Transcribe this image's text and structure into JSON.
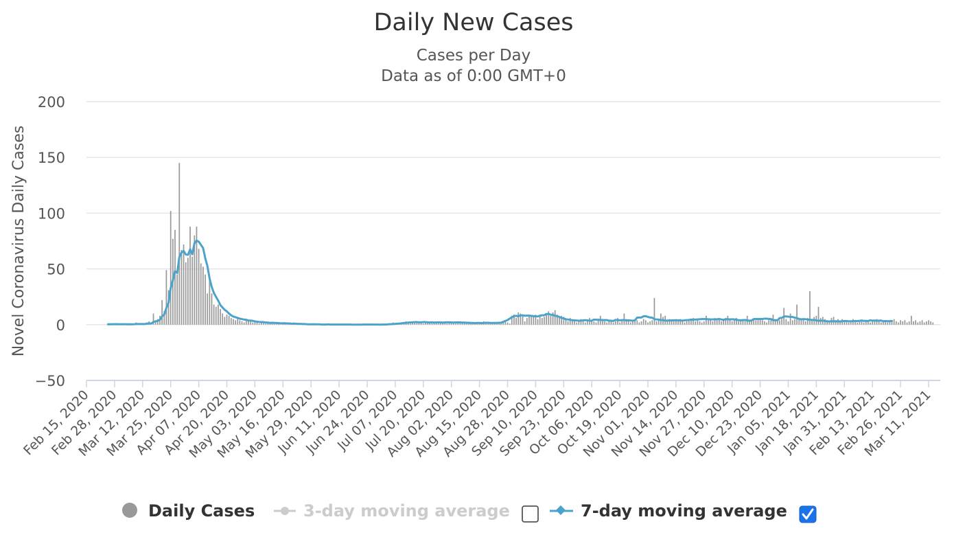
{
  "colors": {
    "bar": "#999999",
    "ma7": "#4ba3cb",
    "ma3_disabled": "#cccccc",
    "grid": "#e6e6e6",
    "checkbox_checked": "#1a73e8"
  },
  "chart_data": {
    "type": "bar",
    "title": "Daily New Cases",
    "subtitle_lines": [
      "Cases per Day",
      "Data as of 0:00 GMT+0"
    ],
    "ylabel": "Novel Coronavirus Daily Cases",
    "xlabel": "",
    "ylim": [
      -50,
      200
    ],
    "yticks": [
      -50,
      0,
      50,
      100,
      150,
      200
    ],
    "x_start_date": "Feb 15, 2020",
    "xtick_labels": [
      "Feb 15, 2020",
      "Feb 28, 2020",
      "Mar 12, 2020",
      "Mar 25, 2020",
      "Apr 07, 2020",
      "Apr 20, 2020",
      "May 03, 2020",
      "May 16, 2020",
      "May 29, 2020",
      "Jun 11, 2020",
      "Jun 24, 2020",
      "Jul 07, 2020",
      "Jul 20, 2020",
      "Aug 02, 2020",
      "Aug 15, 2020",
      "Aug 28, 2020",
      "Sep 10, 2020",
      "Sep 23, 2020",
      "Oct 06, 2020",
      "Oct 19, 2020",
      "Nov 01, 2020",
      "Nov 14, 2020",
      "Nov 27, 2020",
      "Dec 10, 2020",
      "Dec 23, 2020",
      "Jan 05, 2021",
      "Jan 18, 2021",
      "Jan 31, 2021",
      "Feb 13, 2021",
      "Feb 26, 2021",
      "Mar 11, 2021"
    ],
    "grid": true,
    "legend_placement": "bottom-center",
    "series": [
      {
        "name": "Daily Cases",
        "type": "bar",
        "start_date": "Feb 25, 2020",
        "values": [
          0,
          0,
          1,
          0,
          1,
          0,
          0,
          1,
          0,
          0,
          1,
          0,
          0,
          2,
          0,
          0,
          1,
          0,
          2,
          3,
          0,
          10,
          4,
          5,
          8,
          22,
          12,
          49,
          31,
          102,
          77,
          85,
          45,
          145,
          67,
          72,
          56,
          60,
          88,
          61,
          80,
          88,
          68,
          55,
          52,
          45,
          28,
          43,
          28,
          18,
          16,
          18,
          14,
          10,
          7,
          9,
          8,
          6,
          5,
          4,
          6,
          4,
          3,
          2,
          5,
          3,
          3,
          2,
          3,
          2,
          1,
          2,
          3,
          1,
          2,
          1,
          1,
          2,
          1,
          2,
          0,
          1,
          2,
          1,
          1,
          0,
          2,
          1,
          0,
          1,
          1,
          0,
          1,
          0,
          0,
          1,
          0,
          0,
          1,
          0,
          0,
          0,
          1,
          0,
          0,
          0,
          1,
          0,
          0,
          0,
          0,
          1,
          0,
          0,
          0,
          0,
          0,
          0,
          0,
          1,
          0,
          0,
          0,
          0,
          0,
          0,
          0,
          1,
          0,
          0,
          0,
          0,
          2,
          1,
          1,
          1,
          2,
          2,
          3,
          2,
          1,
          3,
          2,
          2,
          3,
          2,
          1,
          2,
          3,
          2,
          1,
          2,
          2,
          1,
          3,
          2,
          2,
          1,
          2,
          3,
          2,
          1,
          2,
          3,
          2,
          2,
          1,
          1,
          2,
          2,
          1,
          1,
          2,
          1,
          3,
          2,
          1,
          1,
          2,
          2,
          1,
          2,
          1,
          2,
          3,
          2,
          1,
          8,
          9,
          6,
          11,
          10,
          8,
          3,
          6,
          9,
          8,
          7,
          9,
          5,
          8,
          6,
          7,
          10,
          12,
          8,
          11,
          13,
          9,
          6,
          8,
          7,
          5,
          3,
          6,
          4,
          3,
          2,
          4,
          5,
          3,
          2,
          3,
          6,
          4,
          3,
          2,
          4,
          8,
          5,
          3,
          2,
          4,
          3,
          2,
          3,
          6,
          2,
          4,
          10,
          5,
          3,
          2,
          4,
          3,
          4,
          2,
          3,
          5,
          4,
          2,
          3,
          4,
          24,
          3,
          4,
          10,
          7,
          8,
          3,
          5,
          4,
          3,
          4,
          3,
          5,
          4,
          2,
          3,
          4,
          5,
          6,
          3,
          4,
          3,
          2,
          3,
          8,
          4,
          5,
          3,
          6,
          4,
          5,
          3,
          4,
          6,
          8,
          5,
          3,
          4,
          6,
          3,
          4,
          5,
          3,
          8,
          4,
          3,
          5,
          4,
          6,
          5,
          4,
          3,
          2,
          4,
          5,
          9,
          4,
          3,
          4,
          5,
          15,
          5,
          3,
          10,
          4,
          5,
          18,
          6,
          4,
          5,
          3,
          6,
          30,
          4,
          7,
          8,
          16,
          6,
          7,
          5,
          4,
          3,
          6,
          7,
          4,
          5,
          3,
          5,
          4,
          3,
          2,
          4,
          5,
          3,
          2,
          3,
          4,
          2,
          3,
          4,
          2,
          3,
          4,
          5,
          3,
          2,
          3,
          4,
          2,
          4,
          3,
          5,
          3,
          2,
          4,
          3,
          4,
          2,
          3,
          8,
          3,
          4,
          2,
          3,
          4,
          2,
          3,
          4,
          3,
          2
        ]
      },
      {
        "name": "3-day moving average",
        "type": "line",
        "visible": false
      },
      {
        "name": "7-day moving average",
        "type": "line",
        "visible": true,
        "start_date": "Feb 25, 2020",
        "values": [
          0.3,
          0.3,
          0.4,
          0.4,
          0.5,
          0.4,
          0.3,
          0.4,
          0.4,
          0.3,
          0.4,
          0.3,
          0.4,
          0.6,
          0.6,
          0.6,
          0.6,
          0.6,
          0.9,
          1.1,
          1.0,
          2.4,
          2.9,
          3.4,
          4.4,
          7.4,
          9.1,
          15.0,
          19.6,
          32.7,
          39.7,
          48.0,
          46.3,
          60.6,
          64.6,
          66.1,
          62.9,
          62.6,
          67.6,
          63.1,
          73.0,
          75.4,
          74.4,
          71.6,
          68.7,
          59.7,
          52.6,
          41.6,
          33.9,
          28.4,
          25.0,
          21.6,
          17.6,
          15.4,
          13.3,
          11.9,
          10.0,
          8.4,
          7.3,
          6.7,
          6.1,
          5.4,
          5.0,
          4.6,
          4.4,
          3.7,
          3.7,
          3.4,
          3.0,
          2.7,
          2.4,
          2.3,
          2.3,
          2.0,
          1.9,
          1.6,
          1.7,
          1.6,
          1.6,
          1.4,
          1.1,
          1.3,
          1.3,
          1.1,
          1.1,
          0.9,
          0.9,
          0.9,
          0.7,
          0.7,
          0.6,
          0.6,
          0.4,
          0.3,
          0.3,
          0.4,
          0.3,
          0.3,
          0.3,
          0.1,
          0.1,
          0.1,
          0.3,
          0.1,
          0.1,
          0.1,
          0.1,
          0.1,
          0.1,
          0.1,
          0.1,
          0.1,
          0.1,
          0.0,
          0.0,
          0.0,
          0.0,
          0.0,
          0.1,
          0.1,
          0.1,
          0.1,
          0.1,
          0.1,
          0.1,
          0.1,
          0.0,
          0.1,
          0.1,
          0.1,
          0.4,
          0.4,
          0.6,
          0.7,
          0.9,
          1.0,
          1.3,
          1.6,
          1.6,
          1.9,
          2.0,
          2.1,
          2.3,
          2.3,
          2.1,
          2.1,
          2.3,
          2.3,
          2.0,
          2.0,
          2.1,
          1.9,
          2.0,
          2.0,
          2.0,
          1.9,
          2.0,
          2.1,
          2.1,
          2.0,
          1.9,
          2.0,
          2.0,
          2.0,
          1.9,
          1.9,
          1.7,
          1.7,
          1.6,
          1.6,
          1.4,
          1.6,
          1.6,
          1.4,
          1.6,
          1.7,
          1.7,
          1.6,
          1.6,
          1.6,
          1.6,
          1.7,
          1.7,
          2.6,
          3.4,
          4.1,
          5.4,
          6.6,
          7.7,
          7.9,
          7.6,
          8.3,
          8.4,
          8.0,
          8.1,
          8.1,
          7.9,
          7.7,
          7.4,
          7.4,
          8.1,
          8.4,
          8.4,
          9.6,
          9.6,
          9.0,
          8.7,
          8.0,
          7.6,
          6.9,
          6.1,
          5.6,
          4.9,
          4.6,
          4.3,
          4.0,
          3.9,
          3.7,
          3.6,
          3.6,
          3.9,
          4.0,
          3.9,
          3.6,
          3.6,
          4.6,
          4.4,
          4.4,
          4.3,
          4.1,
          4.1,
          4.1,
          3.6,
          3.6,
          3.3,
          4.3,
          4.0,
          3.9,
          4.1,
          4.1,
          3.9,
          3.9,
          3.7,
          3.6,
          3.9,
          6.3,
          6.4,
          6.4,
          7.6,
          7.6,
          7.0,
          6.4,
          6.3,
          4.9,
          4.7,
          4.6,
          4.1,
          4.1,
          3.6,
          3.7,
          3.7,
          3.9,
          3.9,
          4.0,
          3.9,
          3.9,
          3.6,
          3.9,
          4.1,
          4.2,
          4.6,
          4.4,
          4.6,
          4.7,
          4.9,
          5.0,
          5.0,
          5.0,
          4.9,
          4.7,
          4.7,
          4.8,
          4.9,
          5.1,
          4.7,
          4.3,
          4.9,
          4.9,
          4.7,
          4.9,
          4.7,
          4.4,
          4.0,
          3.9,
          4.1,
          4.2,
          3.8,
          3.6,
          3.7,
          5.0,
          5.1,
          5.1,
          5.1,
          5.1,
          5.4,
          5.4,
          5.1,
          5.1,
          4.0,
          4.0,
          3.9,
          5.9,
          6.1,
          7.3,
          7.4,
          7.2,
          7.0,
          6.9,
          6.3,
          5.9,
          5.1,
          4.8,
          5.0,
          4.9,
          4.6,
          4.4,
          4.3,
          4.2,
          3.9,
          3.4,
          3.7,
          3.6,
          3.3,
          3.0,
          2.9,
          3.1,
          3.0,
          3.0,
          3.0,
          2.9,
          3.1,
          3.3,
          3.3,
          3.1,
          3.0,
          3.3,
          3.3,
          3.3,
          3.4,
          3.7,
          3.4,
          3.4,
          3.3,
          3.9,
          3.6,
          3.7,
          3.6,
          3.6,
          3.7,
          3.1,
          3.3,
          3.1,
          3.1,
          3.3
        ]
      }
    ]
  },
  "legend": {
    "items": [
      {
        "label": "Daily Cases",
        "state": "visible"
      },
      {
        "label": "3-day moving average",
        "state": "hidden",
        "checked": false
      },
      {
        "label": "7-day moving average",
        "state": "visible",
        "checked": true
      }
    ]
  }
}
